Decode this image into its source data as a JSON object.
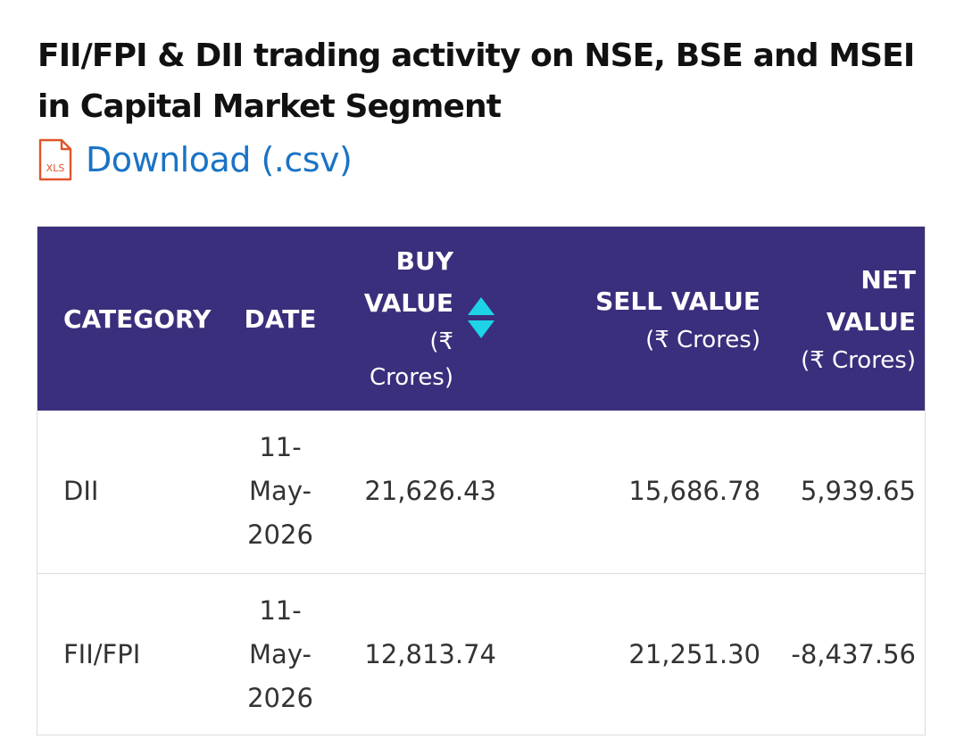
{
  "page": {
    "title": "FII/FPI & DII trading activity on NSE, BSE and MSEI in Capital Market Segment",
    "download_label": "Download (.csv)",
    "download_icon": "xls-file-icon",
    "download_icon_text": "XLS"
  },
  "colors": {
    "header_bg": "#3a2f7c",
    "link": "#1a73c4",
    "sort_arrow": "#1ed3e8",
    "icon_accent": "#e0542a"
  },
  "table": {
    "headers": {
      "category": "CATEGORY",
      "date": "DATE",
      "buy_line1": "BUY",
      "buy_line2": "VALUE",
      "buy_line3": "(₹",
      "buy_line4": "Crores)",
      "sell": "SELL VALUE",
      "sell_unit": "(₹ Crores)",
      "net_line1": "NET",
      "net_line2": "VALUE",
      "net_unit": "(₹ Crores)"
    },
    "sort_icon": "sort-up-down-icon",
    "rows": [
      {
        "category": "DII",
        "date_line1": "11-",
        "date_line2": "May-",
        "date_line3": "2026",
        "buy": "21,626.43",
        "sell": "15,686.78",
        "net": "5,939.65"
      },
      {
        "category": "FII/FPI",
        "date_line1": "11-",
        "date_line2": "May-",
        "date_line3": "2026",
        "buy": "12,813.74",
        "sell": "21,251.30",
        "net": "-8,437.56"
      }
    ]
  }
}
